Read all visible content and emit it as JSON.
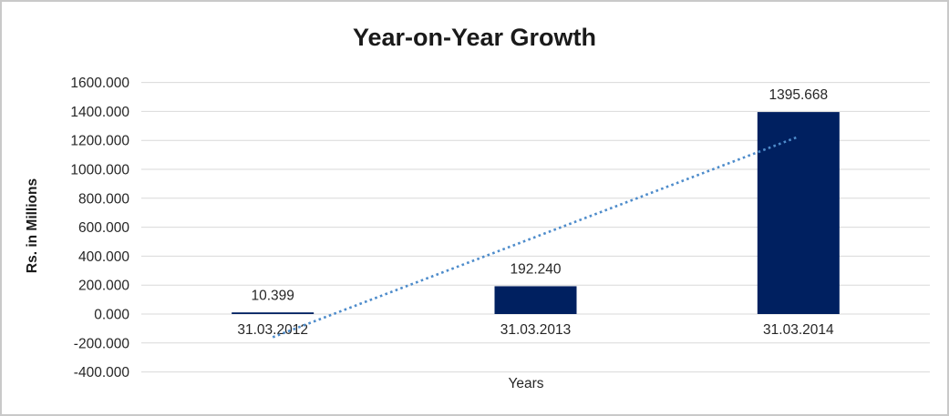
{
  "title": "Year-on-Year Growth",
  "axes": {
    "y_title": "Rs. in Millions",
    "x_title": "Years"
  },
  "chart_data": {
    "type": "bar",
    "title": "Year-on-Year Growth",
    "xlabel": "Years",
    "ylabel": "Rs. in Millions",
    "categories": [
      "31.03.2012",
      "31.03.2013",
      "31.03.2014"
    ],
    "values": [
      10.399,
      192.24,
      1395.668
    ],
    "data_labels": [
      "10.399",
      "192.240",
      "1395.668"
    ],
    "ylim": [
      -400,
      1600
    ],
    "ytick_step": 200,
    "ytick_labels": [
      "1600.000",
      "1400.000",
      "1200.000",
      "1000.000",
      "800.000",
      "600.000",
      "400.000",
      "200.000",
      "0.000",
      "-200.000",
      "-400.000"
    ],
    "grid": true,
    "legend": "none",
    "bar_color": "#002060",
    "grid_color": "#d9d9d9",
    "label_color": "#262626",
    "trendline": {
      "type": "linear",
      "style": "dotted",
      "color": "#4e8ccb"
    }
  },
  "colors": {
    "background": "#ffffff",
    "border": "#c9c9c9",
    "title_color": "#1a1a1a"
  }
}
